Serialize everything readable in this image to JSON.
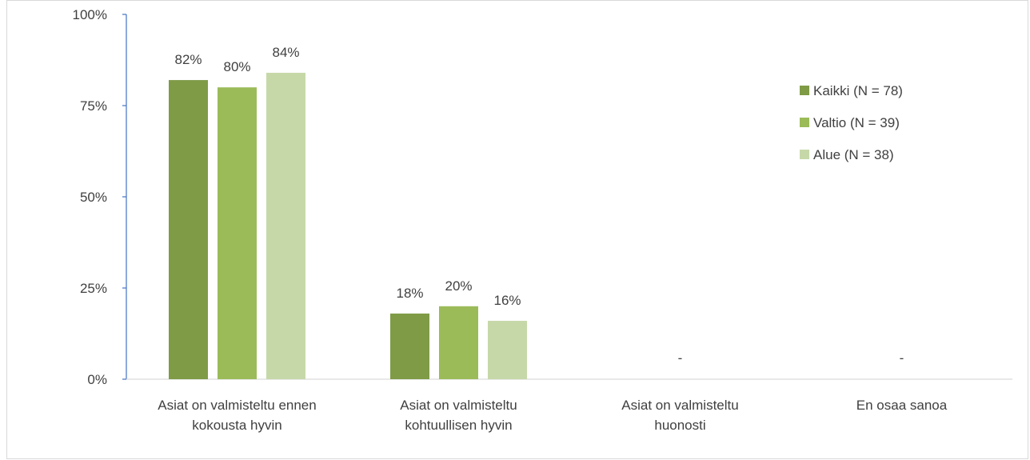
{
  "chart_data": {
    "type": "bar",
    "title": "",
    "xlabel": "",
    "ylabel": "",
    "categories": [
      [
        "Asiat on valmisteltu ennen",
        "kokousta hyvin"
      ],
      [
        "Asiat on valmisteltu",
        "kohtuullisen hyvin"
      ],
      [
        "Asiat on valmisteltu",
        "huonosti"
      ],
      [
        "En osaa sanoa"
      ]
    ],
    "series": [
      {
        "name": "Kaikki (N = 78)",
        "color": "#7f9b46",
        "values": [
          82,
          18,
          null,
          null
        ],
        "labels": [
          "82%",
          "18%",
          "-",
          "-"
        ]
      },
      {
        "name": "Valtio (N = 39)",
        "color": "#9bbb59",
        "values": [
          80,
          20,
          null,
          null
        ],
        "labels": [
          "80%",
          "20%",
          "",
          ""
        ]
      },
      {
        "name": "Alue (N = 38)",
        "color": "#c6d8a8",
        "values": [
          84,
          16,
          null,
          null
        ],
        "labels": [
          "84%",
          "16%",
          "",
          ""
        ]
      }
    ],
    "ylim": [
      0,
      100
    ],
    "yticks": [
      0,
      25,
      50,
      75,
      100
    ],
    "ytick_labels": [
      "0%",
      "25%",
      "50%",
      "75%",
      "100%"
    ],
    "grid": false,
    "legend_position": "right"
  }
}
